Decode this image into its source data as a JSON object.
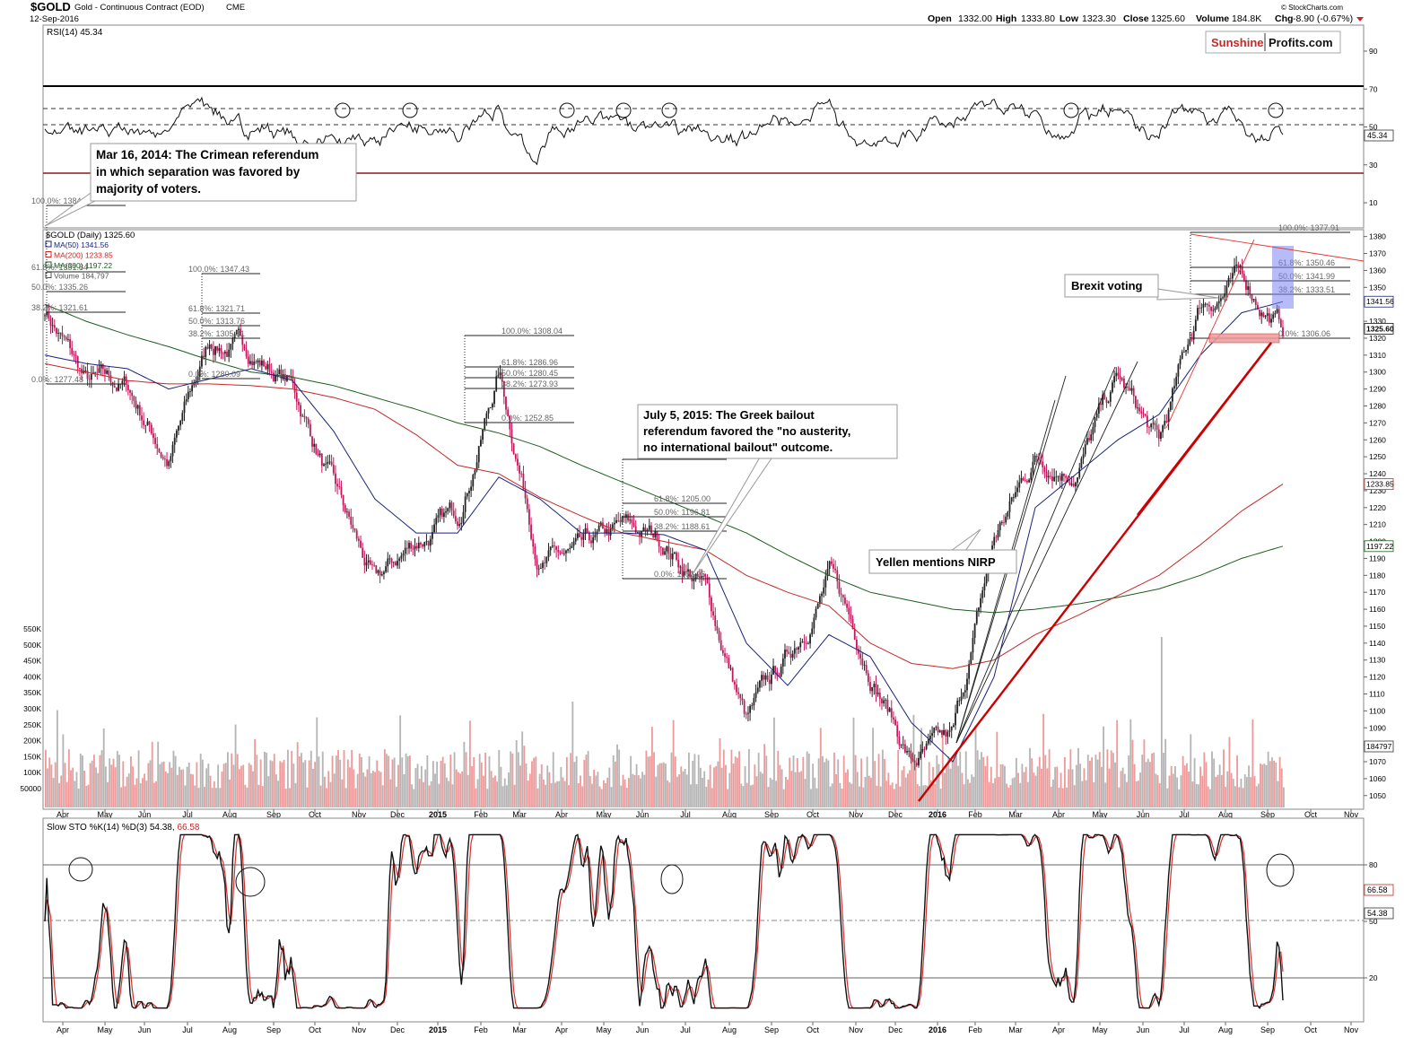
{
  "header": {
    "symbol": "$GOLD",
    "description": "Gold - Continuous Contract (EOD)",
    "exchange": "CME",
    "date": "12-Sep-2016",
    "open_label": "Open",
    "open": "1332.00",
    "high_label": "High",
    "high": "1333.80",
    "low_label": "Low",
    "low": "1323.30",
    "close_label": "Close",
    "close": "1325.60",
    "volume_label": "Volume",
    "volume": "184.8K",
    "chg_label": "Chg",
    "chg": "-8.90 (-0.67%)",
    "watermark": "© StockCharts.com"
  },
  "logo": {
    "part1": "Sunshine",
    "part2": "Profits.com"
  },
  "rsi": {
    "label": "RSI(14) 45.34",
    "value_tag": "45.34",
    "ticks": [
      "90",
      "70",
      "50",
      "30",
      "10"
    ]
  },
  "price_panel": {
    "legend_title": "$GOLD (Daily) 1325.60",
    "legend": [
      {
        "text": "MA(50) 1341.56",
        "color": "#1a237e"
      },
      {
        "text": "MA(200) 1233.85",
        "color": "#c62828"
      },
      {
        "text": "MA(300) 1197.22",
        "color": "#1b5e20"
      },
      {
        "text": "Volume 184,797",
        "color": "#555555"
      }
    ],
    "right_tags": {
      "ma50": "1341.56",
      "close": "1325.60",
      "ma200": "1233.85",
      "ma300": "1197.22",
      "volume": "184797"
    },
    "price_ticks": [
      "1380",
      "1370",
      "1360",
      "1350",
      "1340",
      "1330",
      "1320",
      "1310",
      "1300",
      "1290",
      "1280",
      "1270",
      "1260",
      "1250",
      "1240",
      "1230",
      "1220",
      "1210",
      "1200",
      "1190",
      "1180",
      "1170",
      "1160",
      "1150",
      "1140",
      "1130",
      "1120",
      "1110",
      "1100",
      "1090",
      "1080",
      "1070",
      "1060",
      "1050"
    ],
    "volume_ticks": [
      "550K",
      "500K",
      "450K",
      "400K",
      "350K",
      "300K",
      "250K",
      "200K",
      "150K",
      "100K",
      "50000"
    ],
    "x_labels": [
      "Apr",
      "May",
      "Jun",
      "Jul",
      "Aug",
      "Sep",
      "Oct",
      "Nov",
      "Dec",
      "2015",
      "Feb",
      "Mar",
      "Apr",
      "May",
      "Jun",
      "Jul",
      "Aug",
      "Sep",
      "Oct",
      "Nov",
      "Dec",
      "2016",
      "Feb",
      "Mar",
      "Apr",
      "May",
      "Jun",
      "Jul",
      "Aug",
      "Sep",
      "Oct",
      "Nov"
    ],
    "fib_sets": [
      {
        "labels": [
          "100.0%: 1384.09",
          "61.8%: 1351.84",
          "50.0%: 1335.26",
          "38.2%: 1321.61",
          "0.0%: 1277.48"
        ]
      },
      {
        "labels": [
          "100.0%: 1347.43",
          "61.8%: 1321.71",
          "50.0%: 1313.76",
          "38.2%: 1305.81",
          "0.0%: 1280.09"
        ]
      },
      {
        "labels": [
          "100.0%: 1308.04",
          "61.8%: 1286.96",
          "50.0%: 1280.45",
          "38.2%: 1273.93",
          "0.0%: 1252.85"
        ]
      },
      {
        "labels": [
          "100.0%: 1231.55",
          "61.8%: 1205.00",
          "50.0%: 1196.81",
          "38.2%: 1188.61",
          "0.0%: 1162.06"
        ]
      },
      {
        "labels": [
          "100.0%: 1377.91",
          "61.8%: 1350.46",
          "50.0%: 1341.99",
          "38.2%: 1333.51",
          "0.0%: 1306.06"
        ]
      }
    ]
  },
  "annotations": {
    "crimea": [
      "Mar 16, 2014: The Crimean referendum",
      "in which separation was favored by",
      "majority of voters."
    ],
    "greek": [
      "July 5, 2015: The Greek bailout",
      "referendum favored the \"no austerity,",
      "no international bailout\" outcome."
    ],
    "yellen": "Yellen mentions NIRP",
    "brexit": "Brexit voting"
  },
  "sto": {
    "label_part1": "Slow STO %K(14) %D(3) 54.38, ",
    "label_part2": "66.58",
    "tag_d": "66.58",
    "tag_k": "54.38",
    "ticks": [
      "80",
      "50",
      "20"
    ]
  },
  "colors": {
    "up": "#222222",
    "down": "#c2185b",
    "accent": "#cc0000"
  },
  "chart_data": {
    "type": "line",
    "title": "$GOLD Gold - Continuous Contract (EOD) CME",
    "x_range": [
      "2014-03",
      "2016-11"
    ],
    "y_range": [
      1043,
      1383
    ],
    "x": [
      "2014-03",
      "2014-04",
      "2014-05",
      "2014-06",
      "2014-07",
      "2014-08",
      "2014-09",
      "2014-10",
      "2014-11",
      "2014-12",
      "2015-01",
      "2015-02",
      "2015-03",
      "2015-04",
      "2015-05",
      "2015-06",
      "2015-07",
      "2015-08",
      "2015-09",
      "2015-10",
      "2015-11",
      "2015-12",
      "2016-01",
      "2016-02",
      "2016-03",
      "2016-04",
      "2016-05",
      "2016-06",
      "2016-07",
      "2016-08",
      "2016-09"
    ],
    "series": [
      {
        "name": "$GOLD (Daily)",
        "values": [
          1338,
          1293,
          1290,
          1248,
          1318,
          1312,
          1292,
          1230,
          1172,
          1200,
          1215,
          1301,
          1190,
          1190,
          1205,
          1200,
          1172,
          1093,
          1130,
          1180,
          1128,
          1070,
          1080,
          1200,
          1250,
          1245,
          1295,
          1255,
          1340,
          1355,
          1325.6
        ]
      },
      {
        "name": "MA(50)",
        "values": [
          1310,
          1305,
          1302,
          1290,
          1296,
          1302,
          1295,
          1265,
          1225,
          1205,
          1205,
          1238,
          1225,
          1205,
          1205,
          1204,
          1195,
          1140,
          1115,
          1145,
          1132,
          1093,
          1070,
          1120,
          1220,
          1240,
          1260,
          1275,
          1310,
          1335,
          1341.56
        ]
      },
      {
        "name": "MA(200)",
        "values": [
          1305,
          1300,
          1295,
          1293,
          1293,
          1292,
          1290,
          1285,
          1278,
          1263,
          1245,
          1240,
          1226,
          1215,
          1205,
          1200,
          1195,
          1180,
          1170,
          1162,
          1140,
          1128,
          1125,
          1130,
          1145,
          1156,
          1168,
          1180,
          1198,
          1218,
          1233.85
        ]
      },
      {
        "name": "MA(300)",
        "values": [
          1340,
          1330,
          1322,
          1315,
          1307,
          1300,
          1297,
          1292,
          1285,
          1278,
          1270,
          1264,
          1256,
          1245,
          1235,
          1225,
          1215,
          1205,
          1192,
          1180,
          1170,
          1165,
          1160,
          1158,
          1160,
          1163,
          1167,
          1172,
          1180,
          1190,
          1197.22
        ]
      }
    ],
    "rsi": {
      "name": "RSI(14)",
      "range": [
        0,
        100
      ],
      "last": 45.34
    },
    "stochastic": {
      "name": "Slow STO %K(14) %D(3)",
      "range": [
        0,
        100
      ],
      "k_last": 54.38,
      "d_last": 66.58
    },
    "volume_last": 184797
  }
}
